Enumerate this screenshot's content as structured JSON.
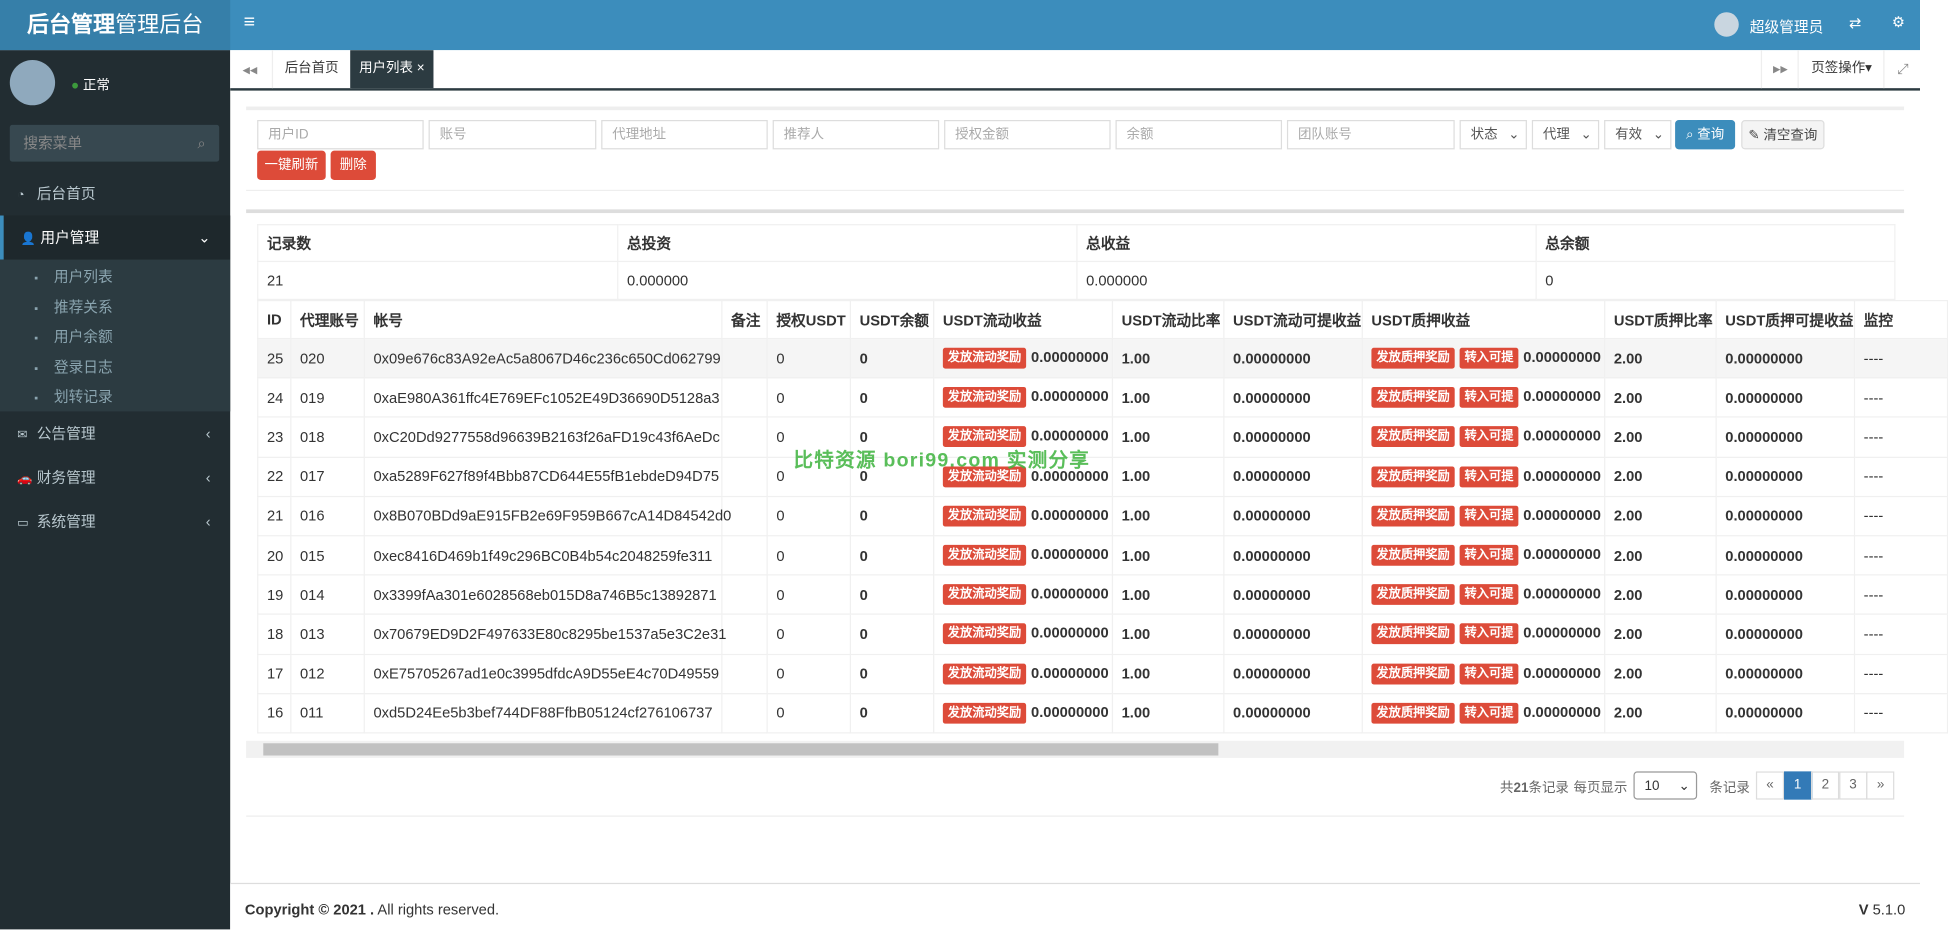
{
  "header": {
    "brand_bold": "后台管理",
    "brand": "管理后台",
    "user": "超级管理员"
  },
  "sidebar": {
    "status": "正常",
    "search_placeholder": "搜索菜单",
    "menu": [
      {
        "label": "后台首页"
      },
      {
        "label": "用户管理",
        "children": [
          "用户列表",
          "推荐关系",
          "用户余额",
          "登录日志",
          "划转记录"
        ]
      },
      {
        "label": "公告管理"
      },
      {
        "label": "财务管理"
      },
      {
        "label": "系统管理"
      }
    ]
  },
  "tabs": {
    "items": [
      "后台首页",
      "用户列表"
    ],
    "page_ops": "页签操作"
  },
  "filters": {
    "placeholders": [
      "用户ID",
      "账号",
      "代理地址",
      "推荐人",
      "授权金额",
      "余额",
      "团队账号"
    ],
    "selects": [
      "状态",
      "代理",
      "有效"
    ],
    "search": "查询",
    "clear": "清空查询",
    "refresh": "一键刷新",
    "delete": "删除"
  },
  "summary": {
    "headers": [
      "记录数",
      "总投资",
      "总收益",
      "总余额"
    ],
    "values": [
      "21",
      "0.000000",
      "0.000000",
      "0"
    ]
  },
  "table": {
    "columns": [
      "ID",
      "代理账号",
      "帐号",
      "备注",
      "授权USDT",
      "USDT余额",
      "USDT流动收益",
      "USDT流动比率",
      "USDT流动可提收益",
      "USDT质押收益",
      "USDT质押比率",
      "USDT质押可提收益",
      "监控"
    ],
    "buttons": {
      "flow_reward": "发放流动奖励",
      "pledge_reward": "发放质押奖励",
      "to_withdrawable": "转入可提"
    },
    "rows": [
      {
        "id": "25",
        "agent": "020",
        "account": "0x09e676c83A92eAc5a8067D46c236c650Cd062799",
        "auth": "0",
        "balance": "0",
        "flow_income": "0.00000000",
        "flow_ratio": "1.00",
        "flow_withdrawable": "0.00000000",
        "pledge_income": "0.00000000",
        "pledge_ratio": "2.00",
        "pledge_withdrawable": "0.00000000",
        "monitor": "----"
      },
      {
        "id": "24",
        "agent": "019",
        "account": "0xaE980A361ffc4E769EFc1052E49D36690D5128a3",
        "auth": "0",
        "balance": "0",
        "flow_income": "0.00000000",
        "flow_ratio": "1.00",
        "flow_withdrawable": "0.00000000",
        "pledge_income": "0.00000000",
        "pledge_ratio": "2.00",
        "pledge_withdrawable": "0.00000000",
        "monitor": "----"
      },
      {
        "id": "23",
        "agent": "018",
        "account": "0xC20Dd9277558d96639B2163f26aFD19c43f6AeDc",
        "auth": "0",
        "balance": "0",
        "flow_income": "0.00000000",
        "flow_ratio": "1.00",
        "flow_withdrawable": "0.00000000",
        "pledge_income": "0.00000000",
        "pledge_ratio": "2.00",
        "pledge_withdrawable": "0.00000000",
        "monitor": "----"
      },
      {
        "id": "22",
        "agent": "017",
        "account": "0xa5289F627f89f4Bbb87CD644E55fB1ebdeD94D75",
        "auth": "0",
        "balance": "0",
        "flow_income": "0.00000000",
        "flow_ratio": "1.00",
        "flow_withdrawable": "0.00000000",
        "pledge_income": "0.00000000",
        "pledge_ratio": "2.00",
        "pledge_withdrawable": "0.00000000",
        "monitor": "----"
      },
      {
        "id": "21",
        "agent": "016",
        "account": "0x8B070BDd9aE915FB2e69F959B667cA14D84542d0",
        "auth": "0",
        "balance": "0",
        "flow_income": "0.00000000",
        "flow_ratio": "1.00",
        "flow_withdrawable": "0.00000000",
        "pledge_income": "0.00000000",
        "pledge_ratio": "2.00",
        "pledge_withdrawable": "0.00000000",
        "monitor": "----"
      },
      {
        "id": "20",
        "agent": "015",
        "account": "0xec8416D469b1f49c296BC0B4b54c2048259fe311",
        "auth": "0",
        "balance": "0",
        "flow_income": "0.00000000",
        "flow_ratio": "1.00",
        "flow_withdrawable": "0.00000000",
        "pledge_income": "0.00000000",
        "pledge_ratio": "2.00",
        "pledge_withdrawable": "0.00000000",
        "monitor": "----"
      },
      {
        "id": "19",
        "agent": "014",
        "account": "0x3399fAa301e6028568eb015D8a746B5c13892871",
        "auth": "0",
        "balance": "0",
        "flow_income": "0.00000000",
        "flow_ratio": "1.00",
        "flow_withdrawable": "0.00000000",
        "pledge_income": "0.00000000",
        "pledge_ratio": "2.00",
        "pledge_withdrawable": "0.00000000",
        "monitor": "----"
      },
      {
        "id": "18",
        "agent": "013",
        "account": "0x70679ED9D2F497633E80c8295be1537a5e3C2e31",
        "auth": "0",
        "balance": "0",
        "flow_income": "0.00000000",
        "flow_ratio": "1.00",
        "flow_withdrawable": "0.00000000",
        "pledge_income": "0.00000000",
        "pledge_ratio": "2.00",
        "pledge_withdrawable": "0.00000000",
        "monitor": "----"
      },
      {
        "id": "17",
        "agent": "012",
        "account": "0xE75705267ad1e0c3995dfdcA9D55eE4c70D49559",
        "auth": "0",
        "balance": "0",
        "flow_income": "0.00000000",
        "flow_ratio": "1.00",
        "flow_withdrawable": "0.00000000",
        "pledge_income": "0.00000000",
        "pledge_ratio": "2.00",
        "pledge_withdrawable": "0.00000000",
        "monitor": "----"
      },
      {
        "id": "16",
        "agent": "011",
        "account": "0xd5D24Ee5b3bef744DF88FfbB05124cf276106737",
        "auth": "0",
        "balance": "0",
        "flow_income": "0.00000000",
        "flow_ratio": "1.00",
        "flow_withdrawable": "0.00000000",
        "pledge_income": "0.00000000",
        "pledge_ratio": "2.00",
        "pledge_withdrawable": "0.00000000",
        "monitor": "----"
      }
    ]
  },
  "pagination": {
    "prefix": "共",
    "total": "21",
    "suffix": "条记录",
    "per_page": "每页显示",
    "per_page_value": "10",
    "per_page_suffix": "条记录",
    "pages": [
      "«",
      "1",
      "2",
      "3",
      "»"
    ]
  },
  "watermark": "比特资源 bori99.com 实测分享",
  "footer": {
    "copyright": "Copyright © 2021 .",
    "rights": "All rights reserved.",
    "version_label": "V",
    "version": "5.1.0"
  }
}
